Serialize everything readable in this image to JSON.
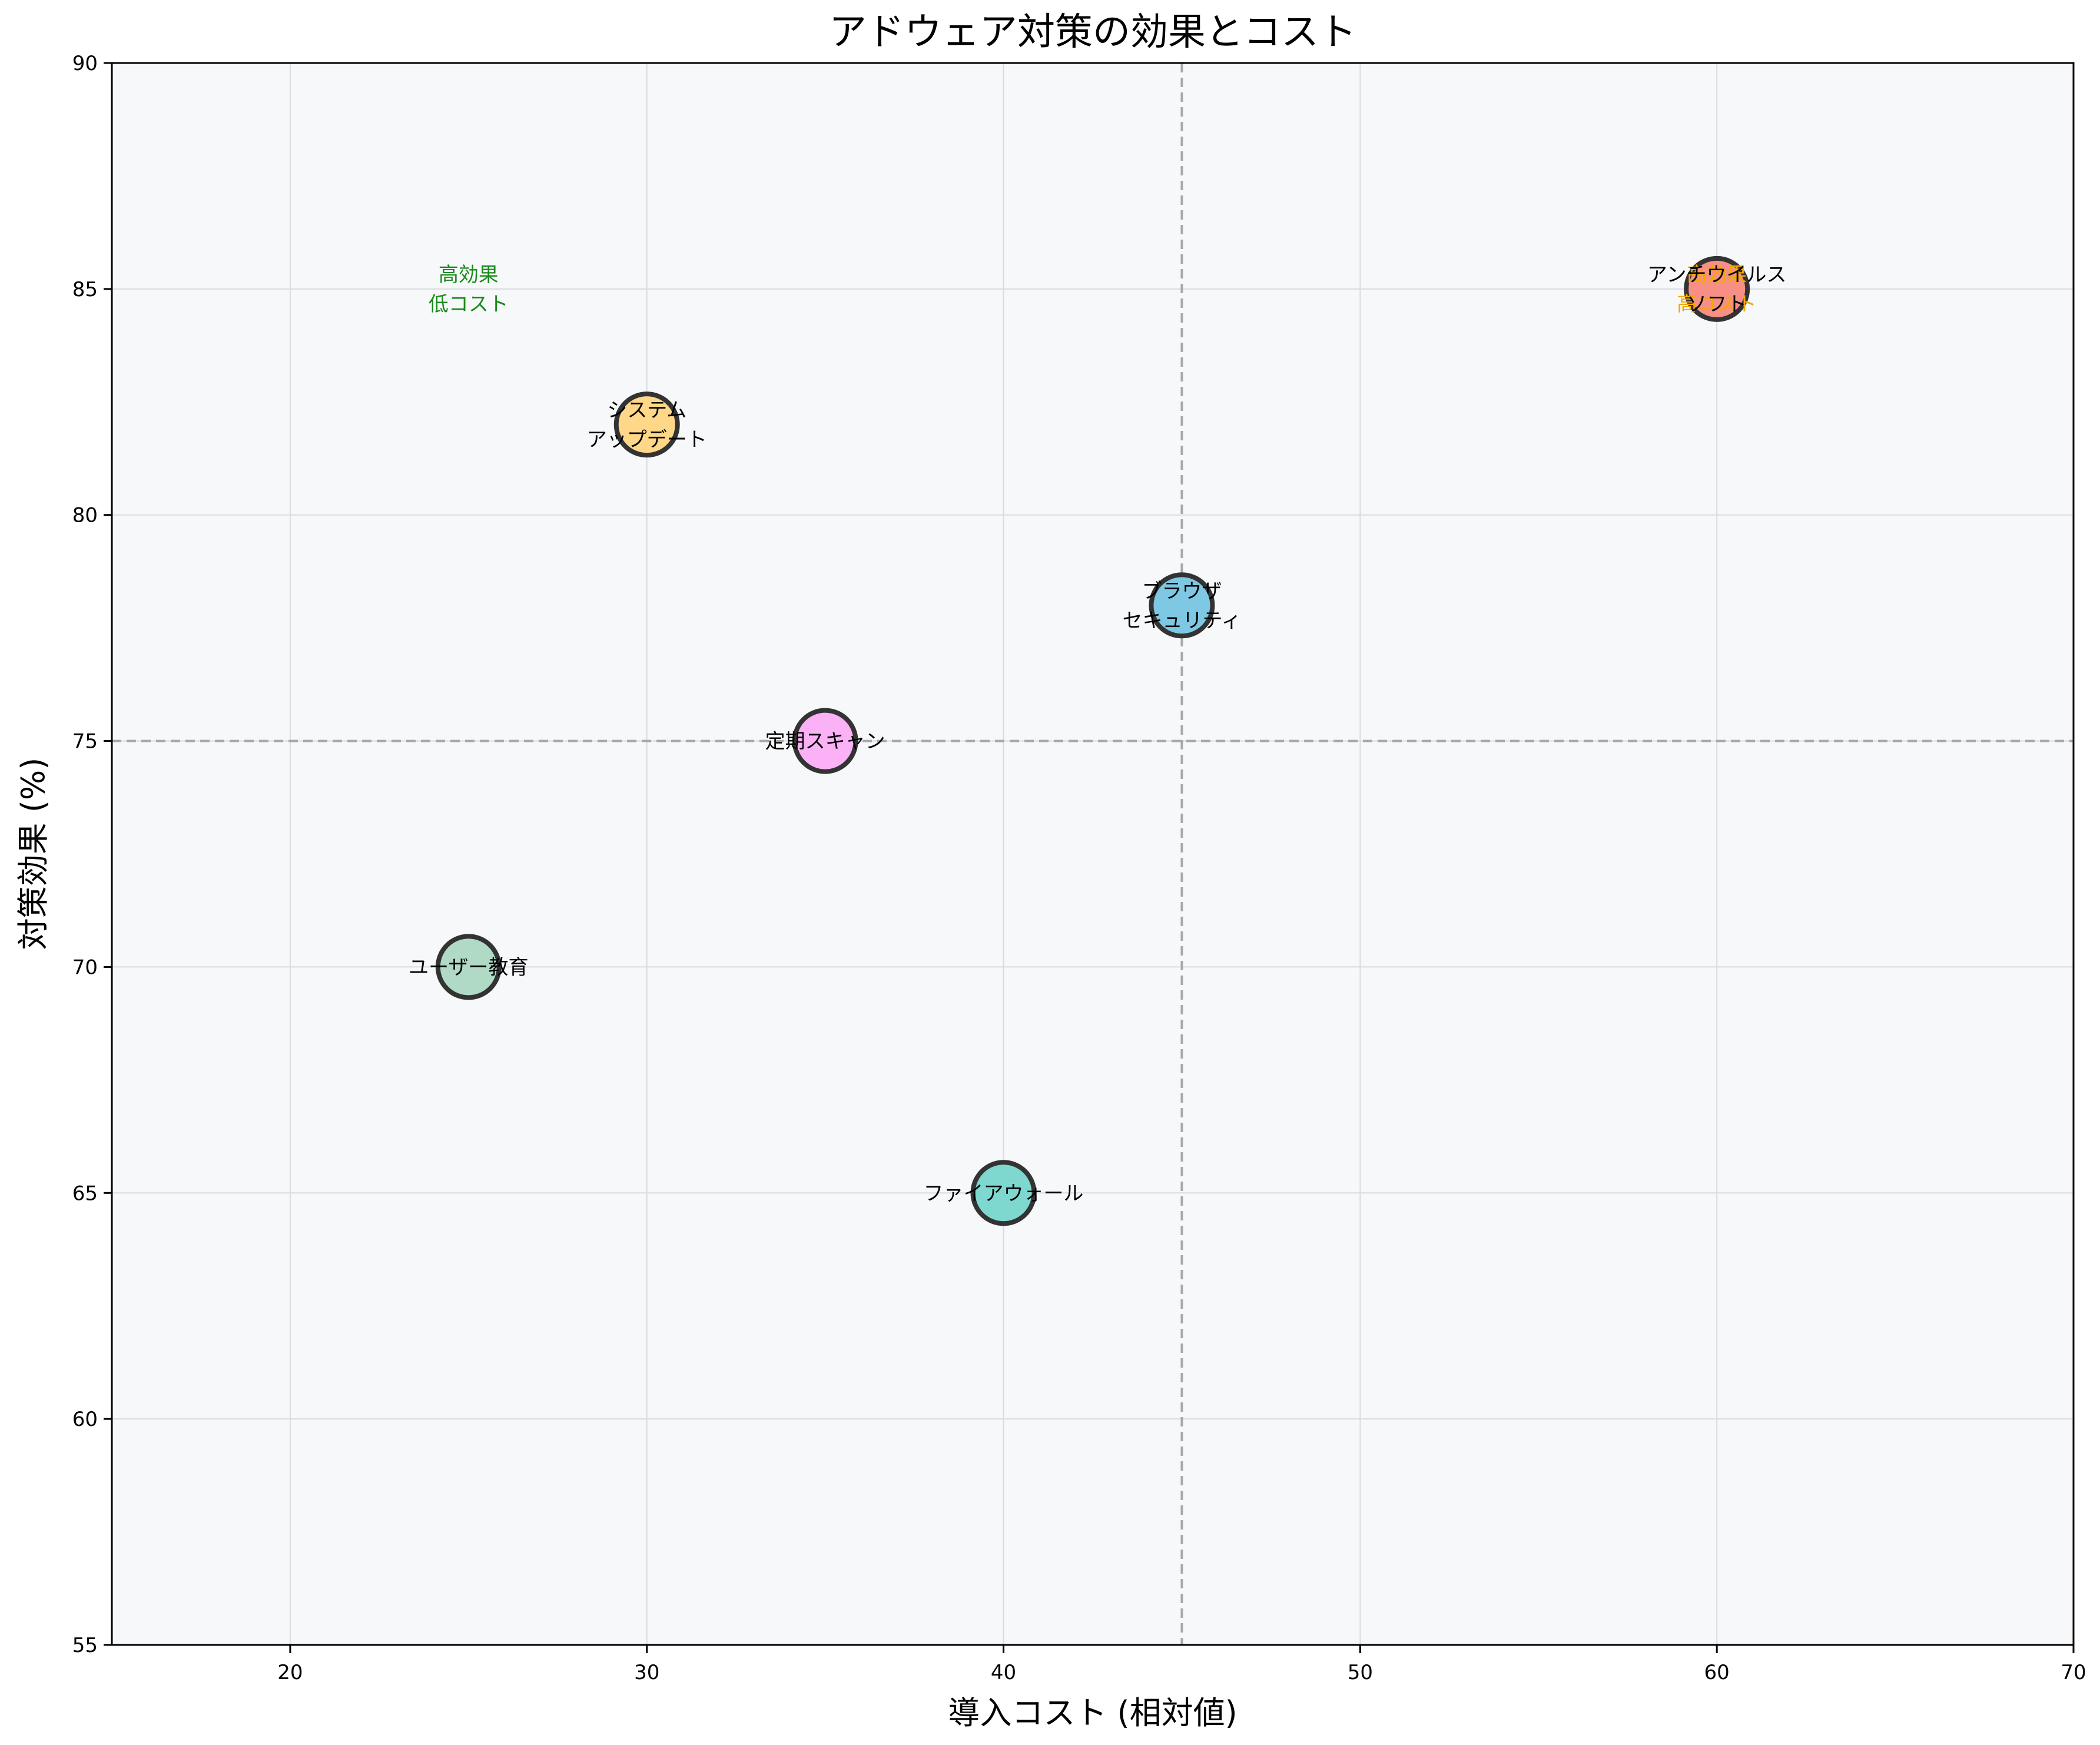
{
  "chart_data": {
    "type": "scatter",
    "title": "アドウェア対策の効果とコスト",
    "xlabel": "導入コスト (相対値)",
    "ylabel": "対策効果 (%)",
    "xlim": [
      15,
      70
    ],
    "ylim": [
      55,
      90
    ],
    "xticks": [
      20,
      30,
      40,
      50,
      60,
      70
    ],
    "yticks": [
      55,
      60,
      65,
      70,
      75,
      80,
      85,
      90
    ],
    "grid": true,
    "reference_lines": {
      "x": 45,
      "y": 75
    },
    "points": [
      {
        "label": [
          "システム",
          "アップデート"
        ],
        "x": 30,
        "y": 82,
        "color": "#fed789"
      },
      {
        "label": [
          "ブラウザ",
          "セキュリティ"
        ],
        "x": 45,
        "y": 78,
        "color": "#7ec8e3"
      },
      {
        "label": [
          "定期スキャン"
        ],
        "x": 35,
        "y": 75,
        "color": "#fbb1f5"
      },
      {
        "label": [
          "ユーザー教育"
        ],
        "x": 25,
        "y": 70,
        "color": "#b0d9c6"
      },
      {
        "label": [
          "ファイアウォール"
        ],
        "x": 40,
        "y": 65,
        "color": "#7fd8d0"
      },
      {
        "label": [
          "アンチウイルス",
          "ソフト"
        ],
        "x": 60,
        "y": 85,
        "color": "#f78f87"
      }
    ],
    "annotations": [
      {
        "text": [
          "高効果",
          "低コスト"
        ],
        "x": 25,
        "y": 85,
        "color": "#1a8a1a"
      },
      {
        "text": [
          "高効果",
          "高コスト"
        ],
        "x": 60,
        "y": 85,
        "color": "#f2a900"
      }
    ]
  }
}
